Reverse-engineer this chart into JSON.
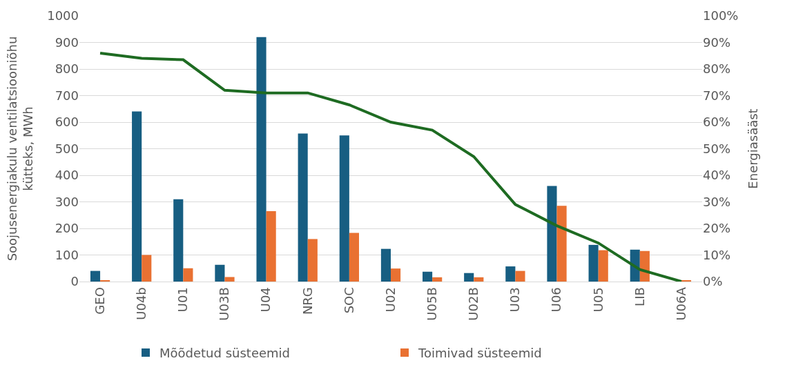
{
  "chart_data": {
    "type": "bar",
    "ylabel": "Soojusenergiakulu ventilatsiooniõhu kütteks, MWh",
    "y2label": "Energiasääst",
    "categories": [
      "GEO",
      "U04b",
      "U01",
      "U03B",
      "U04",
      "NRG",
      "SOC",
      "U02",
      "U05B",
      "U02B",
      "U03",
      "U06",
      "U05",
      "LIB",
      "U06A"
    ],
    "series": [
      {
        "name": "Mõõdetud süsteemid",
        "color": "#175e82",
        "values": [
          40,
          640,
          310,
          63,
          920,
          557,
          550,
          123,
          37,
          32,
          57,
          360,
          138,
          120,
          0
        ]
      },
      {
        "name": "Toimivad süsteemid",
        "color": "#e97132",
        "values": [
          5,
          100,
          50,
          17,
          265,
          160,
          183,
          49,
          16,
          16,
          40,
          285,
          118,
          115,
          5
        ]
      },
      {
        "type": "line",
        "axis": "y2",
        "color": "#1e6b22",
        "values": [
          86,
          84,
          83.5,
          72,
          71,
          71,
          66.5,
          60,
          57,
          47,
          29,
          21,
          14.5,
          4.5,
          0
        ]
      }
    ],
    "ylim": [
      0,
      1000
    ],
    "yticks": [
      0,
      100,
      200,
      300,
      400,
      500,
      600,
      700,
      800,
      900,
      1000
    ],
    "y2lim": [
      0,
      100
    ],
    "y2ticks": [
      {
        "value": 0,
        "label": "0%"
      },
      {
        "value": 10,
        "label": "10%"
      },
      {
        "value": 20,
        "label": "20%"
      },
      {
        "value": 30,
        "label": "30%"
      },
      {
        "value": 40,
        "label": "40%"
      },
      {
        "value": 50,
        "label": "50%"
      },
      {
        "value": 60,
        "label": "60%"
      },
      {
        "value": 70,
        "label": "70%"
      },
      {
        "value": 80,
        "label": "80%"
      },
      {
        "value": 90,
        "label": "90%"
      },
      {
        "value": 100,
        "label": "100%"
      }
    ],
    "grid": "y",
    "legend": "bottom",
    "marker": "none",
    "line_style": "solid"
  }
}
